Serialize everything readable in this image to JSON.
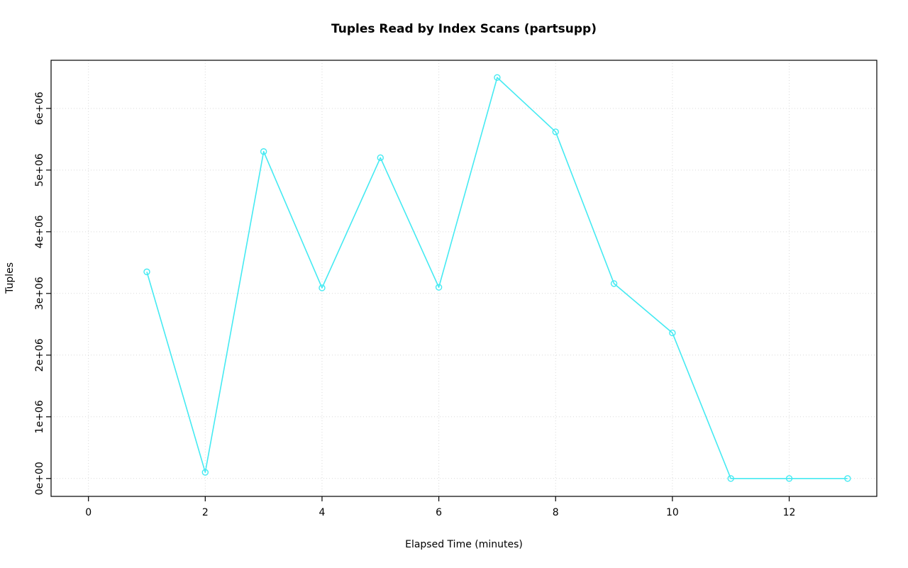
{
  "chart_data": {
    "type": "line",
    "title": "Tuples Read by Index Scans (partsupp)",
    "xlabel": "Elapsed Time (minutes)",
    "ylabel": "Tuples",
    "x": [
      1,
      2,
      3,
      4,
      5,
      6,
      7,
      8,
      9,
      10,
      11,
      12,
      13
    ],
    "y": [
      3350000,
      100000,
      5300000,
      3090000,
      5200000,
      3100000,
      6500000,
      5620000,
      3160000,
      2360000,
      0,
      0,
      0
    ],
    "xticks": [
      0,
      2,
      4,
      6,
      8,
      10,
      12
    ],
    "xtick_labels": [
      "0",
      "2",
      "4",
      "6",
      "8",
      "10",
      "12"
    ],
    "yticks": [
      0,
      1000000,
      2000000,
      3000000,
      4000000,
      5000000,
      6000000
    ],
    "ytick_labels": [
      "0e+00",
      "1e+06",
      "2e+06",
      "3e+06",
      "4e+06",
      "5e+06",
      "6e+06"
    ],
    "xlim": [
      -0.64,
      13.5
    ],
    "ylim": [
      -290000,
      6780000
    ],
    "grid": true,
    "legend_position": "none",
    "line_color": "#45EAF2",
    "marker": "circle-open",
    "grid_color": "#D9D9D9",
    "axis_color": "#000000",
    "background_color": "#FFFFFF"
  }
}
